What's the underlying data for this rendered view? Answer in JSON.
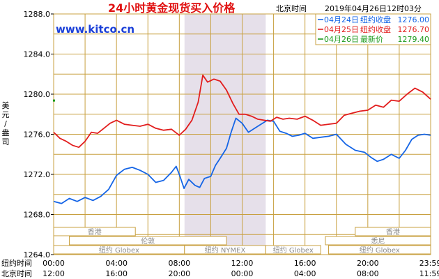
{
  "header": {
    "title": "24小时黄金现货买入价格",
    "beijing_label": "北京时间",
    "timestamp": "2019年04月26日12时03分",
    "watermark": "www.kitco.cn"
  },
  "legend": [
    {
      "date": "04月24日",
      "label": "纽约收盘",
      "value": "1276.00",
      "color": "#1565e6"
    },
    {
      "date": "04月25日",
      "label": "纽约收盘",
      "value": "1276.70",
      "color": "#e21d1d"
    },
    {
      "date": "04月26日",
      "label": "最新价",
      "value": "1279.40",
      "color": "#1a9a1a"
    }
  ],
  "y_axis_label": [
    "美",
    "元",
    "/",
    "盎",
    "司"
  ],
  "x_axis": {
    "ny_label": "纽约时间",
    "bj_label": "北京时间",
    "ny_ticks": [
      "00:00",
      "04:00",
      "08:00",
      "12:00",
      "16:00",
      "20:00",
      "23:59"
    ],
    "bj_ticks": [
      "12:00",
      "16:00",
      "20:00",
      "00:00",
      "04:00",
      "08:00",
      "11:59"
    ]
  },
  "sessions": {
    "hongkong_1": "香港",
    "london": "伦敦",
    "ny_globex_1": "纽约 Globex",
    "ny_nymex": "纽约 NYMEX",
    "ny_globex_2": "纽约 Globex",
    "hongkong_2": "香港",
    "sydney": "悉尼",
    "ny_globex_3": "纽约 Globex"
  },
  "colors": {
    "grid": "#c8a040",
    "title": "#e01010",
    "watermark": "#1a3fd8",
    "shade": "#e6e0ea"
  },
  "chart_data": {
    "type": "line",
    "ylim": [
      1264.0,
      1288.0
    ],
    "yticks": [
      1264.0,
      1268.0,
      1272.0,
      1276.0,
      1280.0,
      1284.0,
      1288.0
    ],
    "x_unit": "hours (NY time)",
    "xlim": [
      0,
      24
    ],
    "series": [
      {
        "name": "04月24日",
        "color": "#1565e6",
        "points": [
          [
            0.0,
            1269.3
          ],
          [
            0.5,
            1269.1
          ],
          [
            1.0,
            1269.6
          ],
          [
            1.5,
            1269.3
          ],
          [
            2.0,
            1269.7
          ],
          [
            2.5,
            1269.4
          ],
          [
            3.0,
            1269.8
          ],
          [
            3.5,
            1270.5
          ],
          [
            4.0,
            1271.9
          ],
          [
            4.5,
            1272.5
          ],
          [
            5.0,
            1272.7
          ],
          [
            5.5,
            1272.4
          ],
          [
            6.0,
            1272.0
          ],
          [
            6.5,
            1271.2
          ],
          [
            7.0,
            1271.4
          ],
          [
            7.5,
            1272.2
          ],
          [
            7.8,
            1272.8
          ],
          [
            8.0,
            1272.0
          ],
          [
            8.3,
            1270.6
          ],
          [
            8.6,
            1271.5
          ],
          [
            9.0,
            1270.9
          ],
          [
            9.3,
            1270.7
          ],
          [
            9.6,
            1271.6
          ],
          [
            10.0,
            1271.8
          ],
          [
            10.3,
            1272.9
          ],
          [
            10.6,
            1273.6
          ],
          [
            11.0,
            1274.6
          ],
          [
            11.3,
            1276.2
          ],
          [
            11.6,
            1277.6
          ],
          [
            12.0,
            1277.1
          ],
          [
            12.4,
            1276.2
          ],
          [
            12.8,
            1276.6
          ],
          [
            13.2,
            1277.0
          ],
          [
            13.6,
            1277.4
          ],
          [
            14.0,
            1277.3
          ],
          [
            14.4,
            1276.3
          ],
          [
            14.8,
            1276.1
          ],
          [
            15.2,
            1275.8
          ],
          [
            15.6,
            1275.9
          ],
          [
            16.0,
            1276.1
          ],
          [
            16.5,
            1275.6
          ],
          [
            17.0,
            1275.7
          ],
          [
            17.5,
            1275.8
          ],
          [
            18.0,
            1276.0
          ],
          [
            18.6,
            1275.0
          ],
          [
            19.2,
            1274.4
          ],
          [
            19.8,
            1274.2
          ],
          [
            20.2,
            1273.7
          ],
          [
            20.6,
            1273.3
          ],
          [
            21.0,
            1273.5
          ],
          [
            21.5,
            1274.0
          ],
          [
            22.0,
            1273.6
          ],
          [
            22.4,
            1274.4
          ],
          [
            22.8,
            1275.5
          ],
          [
            23.2,
            1275.9
          ],
          [
            23.6,
            1276.0
          ],
          [
            24.0,
            1275.9
          ]
        ]
      },
      {
        "name": "04月25日",
        "color": "#e21d1d",
        "points": [
          [
            0.0,
            1276.2
          ],
          [
            0.4,
            1275.6
          ],
          [
            0.8,
            1275.3
          ],
          [
            1.2,
            1274.9
          ],
          [
            1.6,
            1274.7
          ],
          [
            2.0,
            1275.3
          ],
          [
            2.4,
            1276.2
          ],
          [
            2.8,
            1276.1
          ],
          [
            3.2,
            1276.6
          ],
          [
            3.6,
            1277.1
          ],
          [
            4.0,
            1277.4
          ],
          [
            4.5,
            1277.0
          ],
          [
            5.0,
            1276.9
          ],
          [
            5.5,
            1276.8
          ],
          [
            6.0,
            1277.0
          ],
          [
            6.5,
            1276.6
          ],
          [
            7.0,
            1276.4
          ],
          [
            7.5,
            1276.5
          ],
          [
            8.0,
            1275.9
          ],
          [
            8.4,
            1276.5
          ],
          [
            8.8,
            1277.4
          ],
          [
            9.2,
            1279.2
          ],
          [
            9.5,
            1281.9
          ],
          [
            9.8,
            1281.2
          ],
          [
            10.2,
            1281.5
          ],
          [
            10.6,
            1281.3
          ],
          [
            11.0,
            1280.4
          ],
          [
            11.4,
            1279.1
          ],
          [
            11.8,
            1278.0
          ],
          [
            12.2,
            1278.0
          ],
          [
            12.6,
            1277.8
          ],
          [
            13.0,
            1277.5
          ],
          [
            13.4,
            1277.4
          ],
          [
            13.8,
            1277.3
          ],
          [
            14.2,
            1277.7
          ],
          [
            14.6,
            1277.5
          ],
          [
            15.0,
            1277.6
          ],
          [
            15.5,
            1277.5
          ],
          [
            16.0,
            1277.8
          ],
          [
            16.5,
            1277.4
          ],
          [
            17.0,
            1276.9
          ],
          [
            17.5,
            1277.0
          ],
          [
            18.0,
            1277.1
          ],
          [
            18.5,
            1277.9
          ],
          [
            19.0,
            1278.1
          ],
          [
            19.5,
            1278.3
          ],
          [
            20.0,
            1278.4
          ],
          [
            20.5,
            1278.9
          ],
          [
            21.0,
            1278.7
          ],
          [
            21.5,
            1279.4
          ],
          [
            22.0,
            1279.3
          ],
          [
            22.5,
            1280.0
          ],
          [
            23.0,
            1280.6
          ],
          [
            23.5,
            1280.2
          ],
          [
            24.0,
            1279.5
          ]
        ]
      }
    ],
    "latest_marker": {
      "name": "04月26日",
      "color": "#1a9a1a",
      "x": 0.0,
      "y": 1279.4
    }
  }
}
